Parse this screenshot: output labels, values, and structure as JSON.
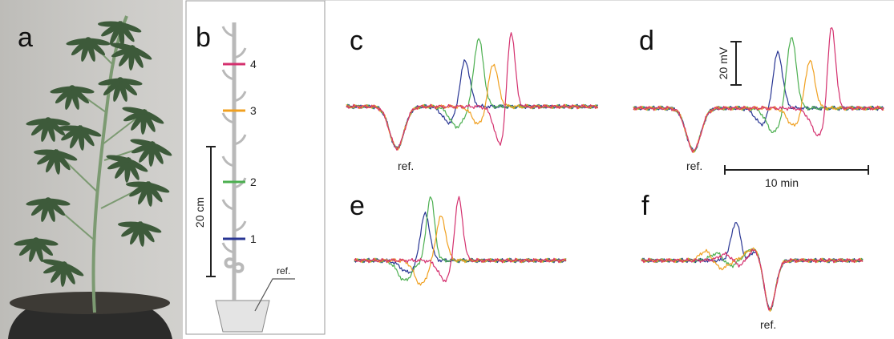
{
  "panels": [
    {
      "label": "a"
    },
    {
      "label": "b",
      "electrodes": [
        "4",
        "3",
        "2",
        "1"
      ],
      "length_scale": "20 cm",
      "reference": "ref."
    },
    {
      "label": "c",
      "reference": "ref."
    },
    {
      "label": "d",
      "reference": "ref.",
      "voltage_scale": "20 mV",
      "time_scale": "10 min"
    },
    {
      "label": "e"
    },
    {
      "label": "f",
      "reference": "ref."
    }
  ]
}
